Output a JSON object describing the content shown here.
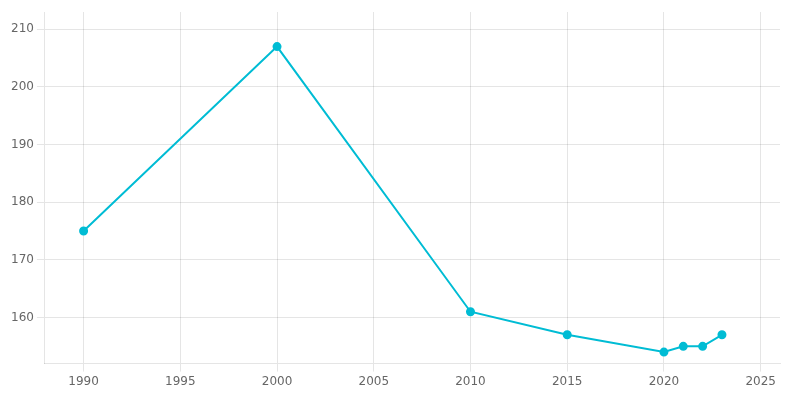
{
  "chart_data": {
    "type": "line",
    "x": [
      1990,
      2000,
      2010,
      2015,
      2020,
      2021,
      2022,
      2023
    ],
    "values": [
      175,
      207,
      161,
      157,
      154,
      155,
      155,
      157
    ],
    "color": "#00bcd4",
    "marker": "circle",
    "xlim": [
      1988,
      2026
    ],
    "ylim": [
      152,
      213
    ],
    "xticks": [
      1990,
      1995,
      2000,
      2005,
      2010,
      2015,
      2020,
      2025
    ],
    "yticks": [
      160,
      170,
      180,
      190,
      200,
      210
    ],
    "grid": true
  }
}
